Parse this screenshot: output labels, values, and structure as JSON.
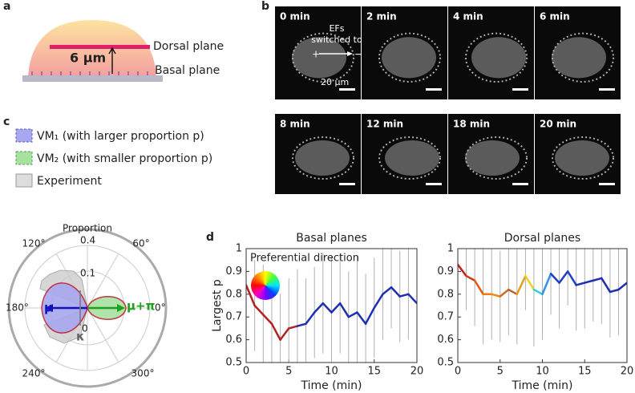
{
  "panels": {
    "a": {
      "label": "a",
      "dorsal": "Dorsal plane",
      "height": "6 μm",
      "basal": "Basal plane"
    },
    "b": {
      "label": "b",
      "frames": [
        "0 min",
        "2 min",
        "4 min",
        "6 min",
        "8 min",
        "12 min",
        "18 min",
        "20 min"
      ],
      "ef_lines": [
        "EFs",
        "switched to"
      ],
      "plus": "+",
      "minus": "−",
      "scale_bar": "20 μm"
    },
    "c": {
      "label": "c",
      "legend": [
        "VM₁ (with larger proportion p)",
        "VM₂ (with smaller proportion p)",
        "Experiment"
      ],
      "radial_title": "Proportion",
      "radial_ticks": [
        0.4,
        0.1,
        0
      ],
      "angles": [
        "120°",
        "60°",
        "180°",
        "0°",
        "240°",
        "300°"
      ],
      "mu": "μ",
      "mu_pi": "μ+π",
      "kappa": "κ"
    },
    "d": {
      "label": "d"
    }
  },
  "chart_data": [
    {
      "type": "line",
      "title": "Basal planes",
      "x_label": "Time (min)",
      "y_label": "Largest p",
      "annotation": "Preferential direction",
      "x": [
        0,
        1,
        2,
        3,
        4,
        5,
        6,
        7,
        8,
        9,
        10,
        11,
        12,
        13,
        14,
        15,
        16,
        17,
        18,
        19,
        20
      ],
      "series": [
        {
          "values": [
            0.84,
            0.75,
            0.71,
            0.67,
            0.6,
            0.65,
            0.66,
            0.67,
            0.72,
            0.76,
            0.72,
            0.76,
            0.7,
            0.72,
            0.67,
            0.74,
            0.8,
            0.83,
            0.79,
            0.8,
            0.76
          ],
          "errors": [
            0.15,
            0.2,
            0.22,
            0.2,
            0.2,
            0.22,
            0.25,
            0.2,
            0.2,
            0.22,
            0.25,
            0.22,
            0.2,
            0.25,
            0.22,
            0.22,
            0.2,
            0.18,
            0.2,
            0.2,
            0.2
          ],
          "colors": [
            "#b22222",
            "#b22222",
            "#b22222",
            "#b22222",
            "#b22222",
            "#b22222",
            "#1f2fb0",
            "#1f2fb0",
            "#1f2fb0",
            "#1f2fb0",
            "#1f2fb0",
            "#1f2fb0",
            "#1f2fb0",
            "#1f2fb0",
            "#1f2fb0",
            "#1f2fb0",
            "#1f2fb0",
            "#1f2fb0",
            "#1f2fb0",
            "#1f2fb0",
            "#1f2fb0"
          ]
        }
      ],
      "xlim": [
        0,
        20
      ],
      "ylim": [
        0.5,
        1
      ],
      "xticks": [
        0,
        5,
        10,
        15,
        20
      ],
      "yticks": [
        0.5,
        0.6,
        0.7,
        0.8,
        0.9,
        1
      ],
      "errorbar_color": "#b0b0b0"
    },
    {
      "type": "line",
      "title": "Dorsal planes",
      "x_label": "Time (min)",
      "x": [
        0,
        1,
        2,
        3,
        4,
        5,
        6,
        7,
        8,
        9,
        10,
        11,
        12,
        13,
        14,
        15,
        16,
        17,
        18,
        19,
        20
      ],
      "series": [
        {
          "values": [
            0.93,
            0.88,
            0.86,
            0.8,
            0.8,
            0.79,
            0.82,
            0.8,
            0.88,
            0.82,
            0.8,
            0.89,
            0.85,
            0.9,
            0.84,
            0.85,
            0.86,
            0.87,
            0.81,
            0.82,
            0.85
          ],
          "errors": [
            0.08,
            0.15,
            0.2,
            0.22,
            0.2,
            0.2,
            0.2,
            0.22,
            0.15,
            0.25,
            0.2,
            0.18,
            0.2,
            0.15,
            0.2,
            0.2,
            0.18,
            0.2,
            0.2,
            0.2,
            0.18
          ],
          "colors": [
            "#c0201a",
            "#d03a10",
            "#e05a10",
            "#f07a10",
            "#f08a10",
            "#d07020",
            "#c06030",
            "#e0a020",
            "#f0d020",
            "#30d0e0",
            "#3090f0",
            "#2040c0",
            "#2040c0",
            "#2040c0",
            "#1f2fb0",
            "#1f2fb0",
            "#1f2fb0",
            "#1f2fb0",
            "#1f2fb0",
            "#1f2fb0",
            "#1f2fb0"
          ]
        }
      ],
      "xlim": [
        0,
        20
      ],
      "ylim": [
        0.5,
        1
      ],
      "xticks": [
        0,
        5,
        10,
        15,
        20
      ],
      "yticks": [
        0.5,
        0.6,
        0.7,
        0.8,
        0.9,
        1
      ],
      "errorbar_color": "#b0b0b0"
    }
  ]
}
